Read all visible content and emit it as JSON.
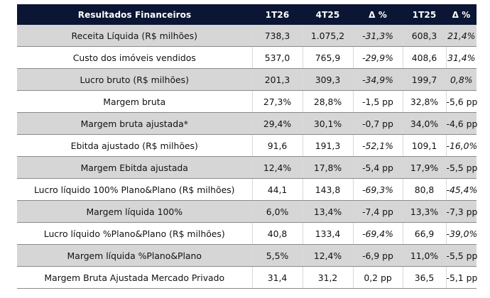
{
  "header": {
    "title": "Resultados Financeiros",
    "col_1t26": "1T26",
    "col_4t25": "4T25",
    "col_delta_1": "Δ %",
    "col_1t25": "1T25",
    "col_delta_2": "Δ %"
  },
  "rows": [
    {
      "label": "Receita Líquida (R$ milhões)",
      "v1t26": "738,3",
      "v4t25": "1.075,2",
      "d1": "-31,3%",
      "v1t25": "608,3",
      "d2": "21,4%"
    },
    {
      "label": "Custo dos imóveis vendidos",
      "v1t26": "537,0",
      "v4t25": "765,9",
      "d1": "-29,9%",
      "v1t25": "408,6",
      "d2": "31,4%"
    },
    {
      "label": "Lucro bruto (R$ milhões)",
      "v1t26": "201,3",
      "v4t25": "309,3",
      "d1": "-34,9%",
      "v1t25": "199,7",
      "d2": "0,8%"
    },
    {
      "label": "Margem bruta",
      "v1t26": "27,3%",
      "v4t25": "28,8%",
      "d1": "-1,5 pp",
      "v1t25": "32,8%",
      "d2": "-5,6 pp"
    },
    {
      "label": "Margem bruta ajustada*",
      "v1t26": "29,4%",
      "v4t25": "30,1%",
      "d1": "-0,7 pp",
      "v1t25": "34,0%",
      "d2": "-4,6 pp"
    },
    {
      "label": "Ebitda ajustado (R$ milhões)",
      "v1t26": "91,6",
      "v4t25": "191,3",
      "d1": "-52,1%",
      "v1t25": "109,1",
      "d2": "-16,0%"
    },
    {
      "label": "Margem Ebitda ajustada",
      "v1t26": "12,4%",
      "v4t25": "17,8%",
      "d1": "-5,4 pp",
      "v1t25": "17,9%",
      "d2": "-5,5 pp"
    },
    {
      "label": "Lucro líquido 100% Plano&Plano (R$ milhões)",
      "v1t26": "44,1",
      "v4t25": "143,8",
      "d1": "-69,3%",
      "v1t25": "80,8",
      "d2": "-45,4%"
    },
    {
      "label": "Margem líquida 100%",
      "v1t26": "6,0%",
      "v4t25": "13,4%",
      "d1": "-7,4 pp",
      "v1t25": "13,3%",
      "d2": "-7,3 pp"
    },
    {
      "label": "Lucro líquido %Plano&Plano (R$ milhões)",
      "v1t26": "40,8",
      "v4t25": "133,4",
      "d1": "-69,4%",
      "v1t25": "66,9",
      "d2": "-39,0%"
    },
    {
      "label": "Margem líquida %Plano&Plano",
      "v1t26": "5,5%",
      "v4t25": "12,4%",
      "d1": "-6,9 pp",
      "v1t25": "11,0%",
      "d2": "-5,5 pp"
    },
    {
      "label": "Margem Bruta Ajustada Mercado Privado",
      "v1t26": "31,4",
      "v4t25": "31,2",
      "d1": "0,2 pp",
      "v1t25": "36,5",
      "d2": "-5,1 pp"
    }
  ]
}
